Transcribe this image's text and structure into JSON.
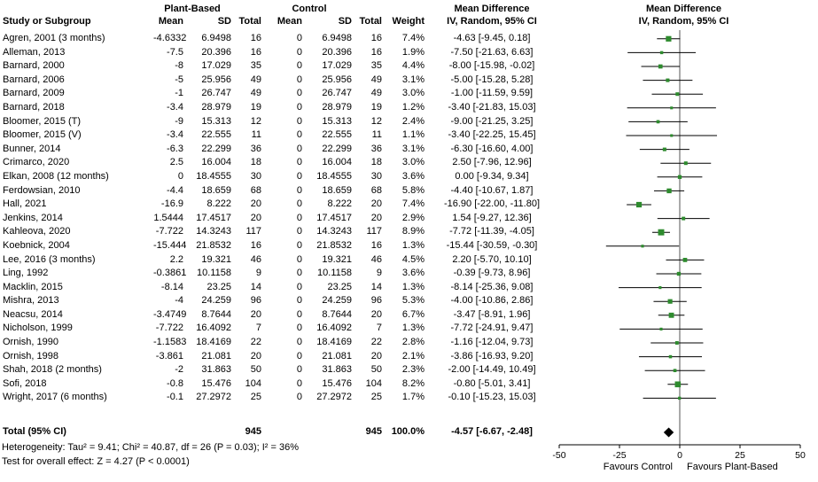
{
  "chart_data": {
    "type": "scatter",
    "variant": "forest-plot",
    "effect_measure": "Mean Difference",
    "method": "IV, Random, 95% CI",
    "columns": {
      "study": "Study or Subgroup",
      "group_treat": "Plant-Based",
      "group_ctrl": "Control",
      "mean": "Mean",
      "sd": "SD",
      "total": "Total",
      "weight": "Weight",
      "md": "Mean Difference",
      "md_sub": "IV, Random, 95% CI"
    },
    "studies": [
      {
        "name": "Agren, 2001 (3 months)",
        "m1": "-4.6332",
        "sd1": "6.9498",
        "n1": "16",
        "m2": "0",
        "sd2": "6.9498",
        "n2": "16",
        "wt": "7.4%",
        "ci": "-4.63 [-9.45, 0.18]",
        "est": -4.63,
        "lo": -9.45,
        "hi": 0.18,
        "w": 7.4
      },
      {
        "name": "Alleman, 2013",
        "m1": "-7.5",
        "sd1": "20.396",
        "n1": "16",
        "m2": "0",
        "sd2": "20.396",
        "n2": "16",
        "wt": "1.9%",
        "ci": "-7.50 [-21.63, 6.63]",
        "est": -7.5,
        "lo": -21.63,
        "hi": 6.63,
        "w": 1.9
      },
      {
        "name": "Barnard, 2000",
        "m1": "-8",
        "sd1": "17.029",
        "n1": "35",
        "m2": "0",
        "sd2": "17.029",
        "n2": "35",
        "wt": "4.4%",
        "ci": "-8.00 [-15.98, -0.02]",
        "est": -8,
        "lo": -15.98,
        "hi": -0.02,
        "w": 4.4
      },
      {
        "name": "Barnard, 2006",
        "m1": "-5",
        "sd1": "25.956",
        "n1": "49",
        "m2": "0",
        "sd2": "25.956",
        "n2": "49",
        "wt": "3.1%",
        "ci": "-5.00 [-15.28, 5.28]",
        "est": -5,
        "lo": -15.28,
        "hi": 5.28,
        "w": 3.1
      },
      {
        "name": "Barnard, 2009",
        "m1": "-1",
        "sd1": "26.747",
        "n1": "49",
        "m2": "0",
        "sd2": "26.747",
        "n2": "49",
        "wt": "3.0%",
        "ci": "-1.00 [-11.59, 9.59]",
        "est": -1,
        "lo": -11.59,
        "hi": 9.59,
        "w": 3.0
      },
      {
        "name": "Barnard, 2018",
        "m1": "-3.4",
        "sd1": "28.979",
        "n1": "19",
        "m2": "0",
        "sd2": "28.979",
        "n2": "19",
        "wt": "1.2%",
        "ci": "-3.40 [-21.83, 15.03]",
        "est": -3.4,
        "lo": -21.83,
        "hi": 15.03,
        "w": 1.2
      },
      {
        "name": "Bloomer, 2015 (T)",
        "m1": "-9",
        "sd1": "15.313",
        "n1": "12",
        "m2": "0",
        "sd2": "15.313",
        "n2": "12",
        "wt": "2.4%",
        "ci": "-9.00 [-21.25, 3.25]",
        "est": -9,
        "lo": -21.25,
        "hi": 3.25,
        "w": 2.4
      },
      {
        "name": "Bloomer, 2015 (V)",
        "m1": "-3.4",
        "sd1": "22.555",
        "n1": "11",
        "m2": "0",
        "sd2": "22.555",
        "n2": "11",
        "wt": "1.1%",
        "ci": "-3.40 [-22.25, 15.45]",
        "est": -3.4,
        "lo": -22.25,
        "hi": 15.45,
        "w": 1.1
      },
      {
        "name": "Bunner, 2014",
        "m1": "-6.3",
        "sd1": "22.299",
        "n1": "36",
        "m2": "0",
        "sd2": "22.299",
        "n2": "36",
        "wt": "3.1%",
        "ci": "-6.30 [-16.60, 4.00]",
        "est": -6.3,
        "lo": -16.6,
        "hi": 4.0,
        "w": 3.1
      },
      {
        "name": "Crimarco, 2020",
        "m1": "2.5",
        "sd1": "16.004",
        "n1": "18",
        "m2": "0",
        "sd2": "16.004",
        "n2": "18",
        "wt": "3.0%",
        "ci": "2.50 [-7.96, 12.96]",
        "est": 2.5,
        "lo": -7.96,
        "hi": 12.96,
        "w": 3.0
      },
      {
        "name": "Elkan, 2008 (12 months)",
        "m1": "0",
        "sd1": "18.4555",
        "n1": "30",
        "m2": "0",
        "sd2": "18.4555",
        "n2": "30",
        "wt": "3.6%",
        "ci": "0.00 [-9.34, 9.34]",
        "est": 0,
        "lo": -9.34,
        "hi": 9.34,
        "w": 3.6
      },
      {
        "name": "Ferdowsian, 2010",
        "m1": "-4.4",
        "sd1": "18.659",
        "n1": "68",
        "m2": "0",
        "sd2": "18.659",
        "n2": "68",
        "wt": "5.8%",
        "ci": "-4.40 [-10.67, 1.87]",
        "est": -4.4,
        "lo": -10.67,
        "hi": 1.87,
        "w": 5.8
      },
      {
        "name": "Hall, 2021",
        "m1": "-16.9",
        "sd1": "8.222",
        "n1": "20",
        "m2": "0",
        "sd2": "8.222",
        "n2": "20",
        "wt": "7.4%",
        "ci": "-16.90 [-22.00, -11.80]",
        "est": -16.9,
        "lo": -22.0,
        "hi": -11.8,
        "w": 7.4
      },
      {
        "name": "Jenkins, 2014",
        "m1": "1.5444",
        "sd1": "17.4517",
        "n1": "20",
        "m2": "0",
        "sd2": "17.4517",
        "n2": "20",
        "wt": "2.9%",
        "ci": "1.54 [-9.27, 12.36]",
        "est": 1.54,
        "lo": -9.27,
        "hi": 12.36,
        "w": 2.9
      },
      {
        "name": "Kahleova, 2020",
        "m1": "-7.722",
        "sd1": "14.3243",
        "n1": "117",
        "m2": "0",
        "sd2": "14.3243",
        "n2": "117",
        "wt": "8.9%",
        "ci": "-7.72 [-11.39, -4.05]",
        "est": -7.72,
        "lo": -11.39,
        "hi": -4.05,
        "w": 8.9
      },
      {
        "name": "Koebnick, 2004",
        "m1": "-15.444",
        "sd1": "21.8532",
        "n1": "16",
        "m2": "0",
        "sd2": "21.8532",
        "n2": "16",
        "wt": "1.3%",
        "ci": "-15.44 [-30.59, -0.30]",
        "est": -15.44,
        "lo": -30.59,
        "hi": -0.3,
        "w": 1.3
      },
      {
        "name": "Lee, 2016 (3 months)",
        "m1": "2.2",
        "sd1": "19.321",
        "n1": "46",
        "m2": "0",
        "sd2": "19.321",
        "n2": "46",
        "wt": "4.5%",
        "ci": "2.20 [-5.70, 10.10]",
        "est": 2.2,
        "lo": -5.7,
        "hi": 10.1,
        "w": 4.5
      },
      {
        "name": "Ling, 1992",
        "m1": "-0.3861",
        "sd1": "10.1158",
        "n1": "9",
        "m2": "0",
        "sd2": "10.1158",
        "n2": "9",
        "wt": "3.6%",
        "ci": "-0.39 [-9.73, 8.96]",
        "est": -0.39,
        "lo": -9.73,
        "hi": 8.96,
        "w": 3.6
      },
      {
        "name": "Macklin, 2015",
        "m1": "-8.14",
        "sd1": "23.25",
        "n1": "14",
        "m2": "0",
        "sd2": "23.25",
        "n2": "14",
        "wt": "1.3%",
        "ci": "-8.14 [-25.36, 9.08]",
        "est": -8.14,
        "lo": -25.36,
        "hi": 9.08,
        "w": 1.3
      },
      {
        "name": "Mishra, 2013",
        "m1": "-4",
        "sd1": "24.259",
        "n1": "96",
        "m2": "0",
        "sd2": "24.259",
        "n2": "96",
        "wt": "5.3%",
        "ci": "-4.00 [-10.86, 2.86]",
        "est": -4,
        "lo": -10.86,
        "hi": 2.86,
        "w": 5.3
      },
      {
        "name": "Neacsu, 2014",
        "m1": "-3.4749",
        "sd1": "8.7644",
        "n1": "20",
        "m2": "0",
        "sd2": "8.7644",
        "n2": "20",
        "wt": "6.7%",
        "ci": "-3.47 [-8.91, 1.96]",
        "est": -3.47,
        "lo": -8.91,
        "hi": 1.96,
        "w": 6.7
      },
      {
        "name": "Nicholson, 1999",
        "m1": "-7.722",
        "sd1": "16.4092",
        "n1": "7",
        "m2": "0",
        "sd2": "16.4092",
        "n2": "7",
        "wt": "1.3%",
        "ci": "-7.72 [-24.91, 9.47]",
        "est": -7.72,
        "lo": -24.91,
        "hi": 9.47,
        "w": 1.3
      },
      {
        "name": "Ornish, 1990",
        "m1": "-1.1583",
        "sd1": "18.4169",
        "n1": "22",
        "m2": "0",
        "sd2": "18.4169",
        "n2": "22",
        "wt": "2.8%",
        "ci": "-1.16 [-12.04, 9.73]",
        "est": -1.16,
        "lo": -12.04,
        "hi": 9.73,
        "w": 2.8
      },
      {
        "name": "Ornish, 1998",
        "m1": "-3.861",
        "sd1": "21.081",
        "n1": "20",
        "m2": "0",
        "sd2": "21.081",
        "n2": "20",
        "wt": "2.1%",
        "ci": "-3.86 [-16.93, 9.20]",
        "est": -3.86,
        "lo": -16.93,
        "hi": 9.2,
        "w": 2.1
      },
      {
        "name": "Shah, 2018 (2 months)",
        "m1": "-2",
        "sd1": "31.863",
        "n1": "50",
        "m2": "0",
        "sd2": "31.863",
        "n2": "50",
        "wt": "2.3%",
        "ci": "-2.00 [-14.49, 10.49]",
        "est": -2,
        "lo": -14.49,
        "hi": 10.49,
        "w": 2.3
      },
      {
        "name": "Sofi, 2018",
        "m1": "-0.8",
        "sd1": "15.476",
        "n1": "104",
        "m2": "0",
        "sd2": "15.476",
        "n2": "104",
        "wt": "8.2%",
        "ci": "-0.80 [-5.01, 3.41]",
        "est": -0.8,
        "lo": -5.01,
        "hi": 3.41,
        "w": 8.2
      },
      {
        "name": "Wright, 2017 (6 months)",
        "m1": "-0.1",
        "sd1": "27.2972",
        "n1": "25",
        "m2": "0",
        "sd2": "27.2972",
        "n2": "25",
        "wt": "1.7%",
        "ci": "-0.10 [-15.23, 15.03]",
        "est": -0.1,
        "lo": -15.23,
        "hi": 15.03,
        "w": 1.7
      }
    ],
    "total": {
      "label": "Total (95% CI)",
      "n1": "945",
      "n2": "945",
      "wt": "100.0%",
      "ci": "-4.57 [-6.67, -2.48]",
      "est": -4.57,
      "lo": -6.67,
      "hi": -2.48
    },
    "footnotes": {
      "heterogeneity": "Heterogeneity: Tau² = 9.41; Chi² = 40.87, df = 26 (P = 0.03); I² = 36%",
      "overall": "Test for overall effect: Z = 4.27 (P < 0.0001)"
    },
    "axis": {
      "min": -50,
      "max": 50,
      "ticks": [
        -50,
        -25,
        0,
        25,
        50
      ],
      "favours_left": "Favours Control",
      "favours_right": "Favours Plant-Based"
    },
    "colors": {
      "marker": "#2E8B2E",
      "diamond": "#000000",
      "line": "#000000",
      "zero_line": "#555555"
    }
  }
}
